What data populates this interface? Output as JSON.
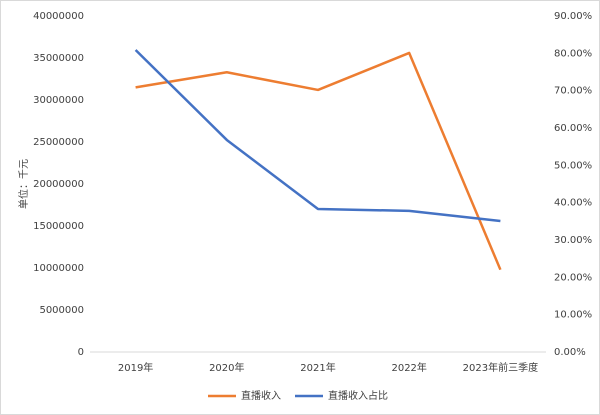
{
  "chart_data": {
    "type": "line",
    "y_label": "单位：千元",
    "categories": [
      "2019年",
      "2020年",
      "2021年",
      "2022年",
      "2023年前三季度"
    ],
    "series": [
      {
        "name": "直播收入",
        "color": "#ed7d31",
        "values": [
          31500000,
          33300000,
          31200000,
          35600000,
          9800000
        ]
      },
      {
        "name": "直播收入占比",
        "color": "#4472c4",
        "axis": "y2",
        "values": [
          80.9,
          56.8,
          38.3,
          37.8,
          35.1
        ]
      }
    ],
    "ylim": [
      0,
      40000000
    ],
    "yticks": [
      0,
      5000000,
      10000000,
      15000000,
      20000000,
      25000000,
      30000000,
      35000000,
      40000000
    ],
    "y2lim": [
      0,
      90
    ],
    "y2ticks": [
      {
        "value": 0,
        "label": "0.00%"
      },
      {
        "value": 10,
        "label": "10.00%"
      },
      {
        "value": 20,
        "label": "20.00%"
      },
      {
        "value": 30,
        "label": "30.00%"
      },
      {
        "value": 40,
        "label": "40.00%"
      },
      {
        "value": 50,
        "label": "50.00%"
      },
      {
        "value": 60,
        "label": "60.00%"
      },
      {
        "value": 70,
        "label": "70.00%"
      },
      {
        "value": 80,
        "label": "80.00%"
      },
      {
        "value": 90,
        "label": "90.00%"
      }
    ],
    "grid": false,
    "legend": "bottom"
  }
}
